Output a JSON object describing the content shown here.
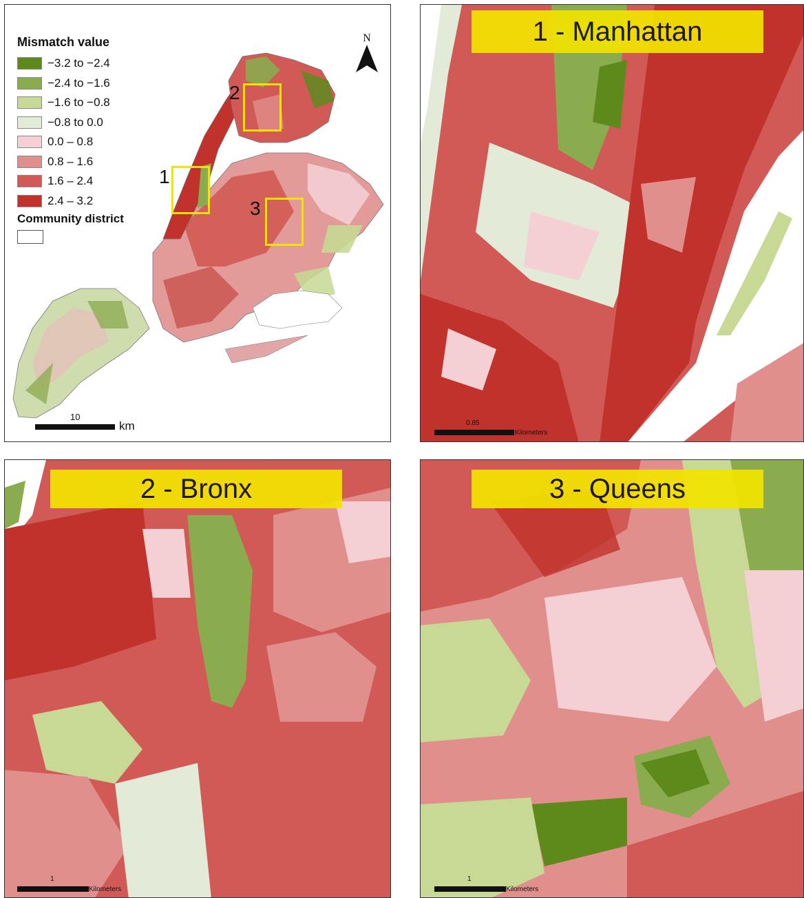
{
  "legend": {
    "title": "Mismatch value",
    "items": [
      {
        "label": "−3.2 to −2.4",
        "color": "#5e8a1c"
      },
      {
        "label": "−2.4 to −1.6",
        "color": "#8aab4e"
      },
      {
        "label": "−1.6 to −0.8",
        "color": "#c7d994"
      },
      {
        "label": "−0.8 to 0.0",
        "color": "#e4ead8"
      },
      {
        "label": "0.0 – 0.8",
        "color": "#f4cfd3"
      },
      {
        "label": "0.8 – 1.6",
        "color": "#e08f8c"
      },
      {
        "label": "1.6 – 2.4",
        "color": "#d25a56"
      },
      {
        "label": "2.4 – 3.2",
        "color": "#c0322b"
      }
    ],
    "district_label": "Community district"
  },
  "overview": {
    "north_label": "N",
    "scale_value": "10",
    "scale_unit": "km",
    "zoom_boxes": [
      {
        "number": "1"
      },
      {
        "number": "2"
      },
      {
        "number": "3"
      }
    ]
  },
  "panels": {
    "manhattan": {
      "title": "1 - Manhattan",
      "scale_value": "0.85",
      "scale_unit": "Kilometers"
    },
    "bronx": {
      "title": "2 - Bronx",
      "scale_value": "1",
      "scale_unit": "Kilometers"
    },
    "queens": {
      "title": "3 - Queens",
      "scale_value": "1",
      "scale_unit": "Kilometers"
    }
  },
  "colors": {
    "zoom_box": "#f0e400",
    "title_box": "#f2e400",
    "water": "#ffffff",
    "border": "#333333"
  }
}
